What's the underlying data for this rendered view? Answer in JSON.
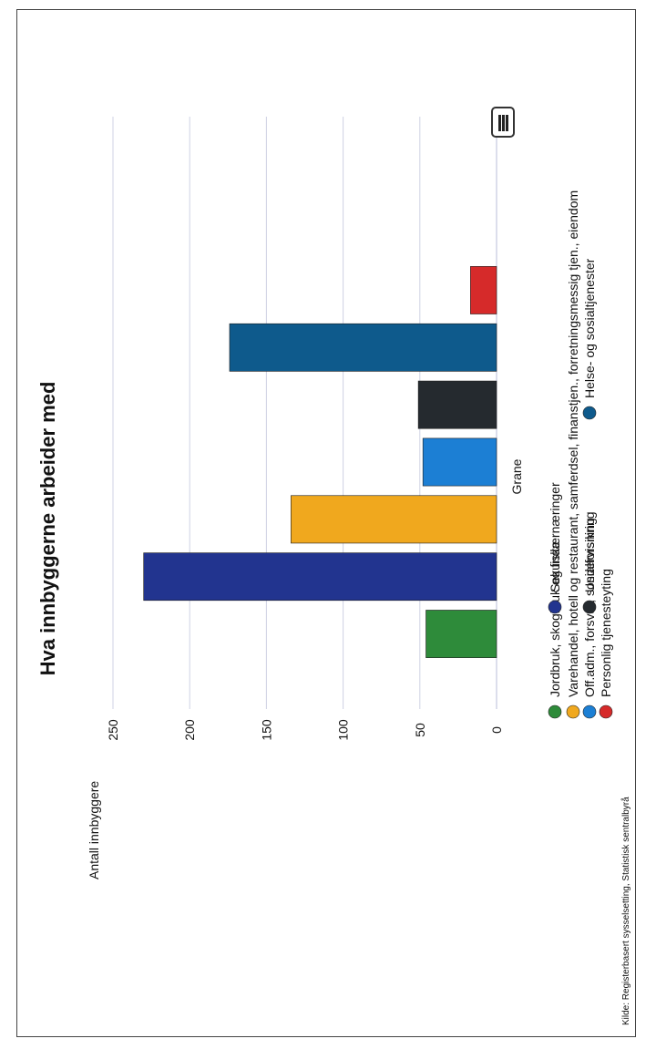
{
  "title": "Hva innbyggerne arbeider med",
  "menu_icon": "menu-icon",
  "source": "Kilde: Registerbasert sysselsetting, Statistisk sentralbyrå",
  "chart_data": {
    "type": "bar",
    "title": "Hva innbyggerne arbeider med",
    "ylabel": "Antall innbyggere",
    "xlabel": "",
    "categories": [
      "Grane"
    ],
    "y_ticks": [
      "0",
      "50",
      "100",
      "150",
      "200",
      "250"
    ],
    "ylim": [
      0,
      250
    ],
    "grid": true,
    "legend_position": "bottom",
    "series": [
      {
        "name": "Jordbruk, skogbruk og fiske",
        "values": [
          46
        ],
        "color": "#2e8b3a"
      },
      {
        "name": "Sekundærnæringer",
        "values": [
          230
        ],
        "color": "#22348f"
      },
      {
        "name": "Varehandel, hotell og restaurant, samferdsel, finanstjen., forretningsmessig tjen., eiendom",
        "values": [
          134
        ],
        "color": "#f0a81e"
      },
      {
        "name": "Off.adm., forsvar, sosialforsikring",
        "values": [
          48
        ],
        "color": "#1c7fd4"
      },
      {
        "name": "Undervisning",
        "values": [
          51
        ],
        "color": "#252a2f"
      },
      {
        "name": "Helse- og sosialtjenester",
        "values": [
          174
        ],
        "color": "#0e5a8c"
      },
      {
        "name": "Personlig tjenesteyting",
        "values": [
          17
        ],
        "color": "#d62a2a"
      }
    ]
  }
}
